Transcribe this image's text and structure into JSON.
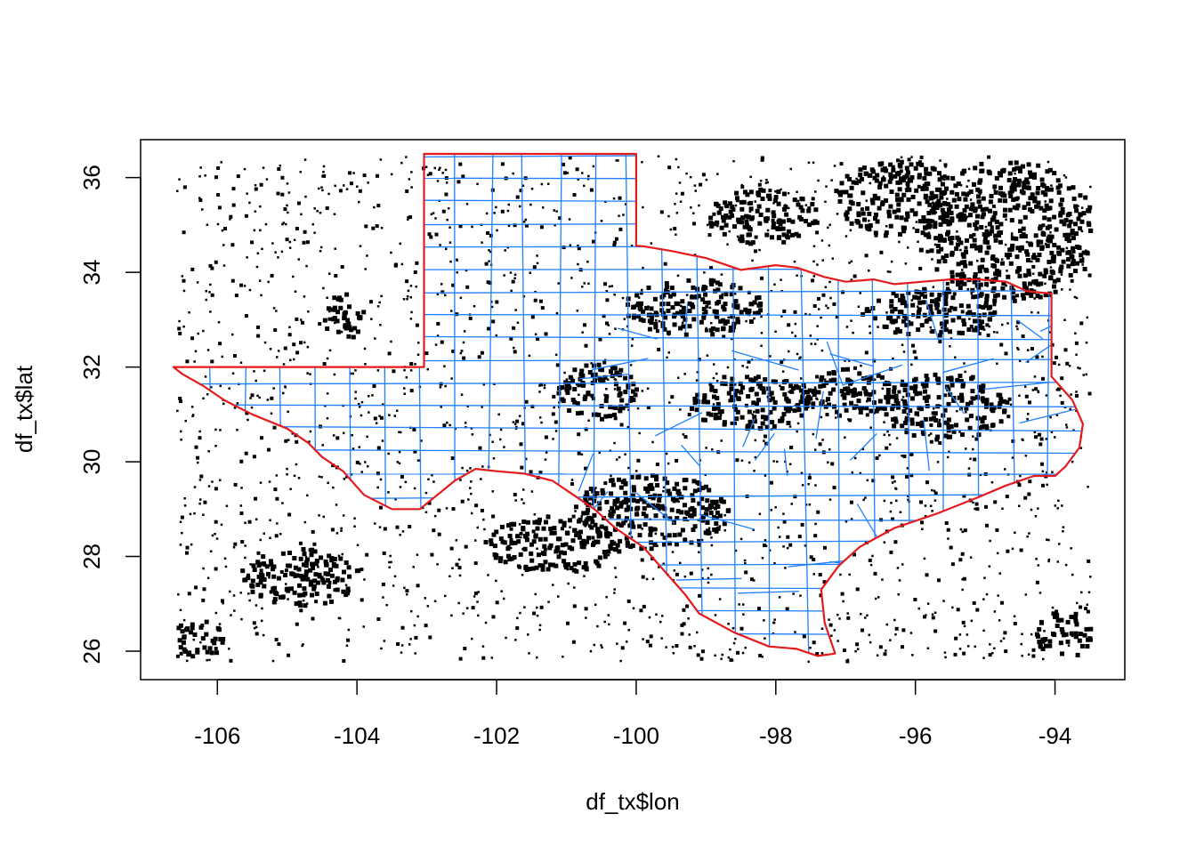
{
  "chart_data": {
    "type": "scatter",
    "title": "",
    "xlabel": "df_tx$lon",
    "ylabel": "df_tx$lat",
    "xlim": [
      -107.1,
      -93.0
    ],
    "ylim": [
      25.4,
      36.8
    ],
    "x_ticks": [
      -106,
      -104,
      -102,
      -100,
      -98,
      -96,
      -94
    ],
    "y_ticks": [
      26,
      28,
      30,
      32,
      34,
      36
    ],
    "x_tick_labels": [
      "-106",
      "-104",
      "-102",
      "-100",
      "-98",
      "-96",
      "-94"
    ],
    "y_tick_labels": [
      "26",
      "28",
      "30",
      "32",
      "34",
      "36"
    ],
    "grid": false,
    "point_color": "#000000",
    "state_outline_color": "#E41A1C",
    "county_line_color": "#1E7FFF",
    "point_extent": {
      "lon": [
        -106.6,
        -93.5
      ],
      "lat": [
        25.8,
        36.5
      ]
    },
    "point_clusters": [
      {
        "lon": -94.7,
        "lat": 34.9,
        "r_lon": 1.3,
        "r_lat": 1.5
      },
      {
        "lon": -95.8,
        "lat": 33.2,
        "r_lon": 1.0,
        "r_lat": 0.5
      },
      {
        "lon": -95.6,
        "lat": 31.2,
        "r_lon": 0.9,
        "r_lat": 0.7
      },
      {
        "lon": -97.0,
        "lat": 31.5,
        "r_lon": 0.7,
        "r_lat": 0.5
      },
      {
        "lon": -99.8,
        "lat": 29.0,
        "r_lon": 1.1,
        "r_lat": 0.8
      },
      {
        "lon": -101.2,
        "lat": 28.3,
        "r_lon": 1.0,
        "r_lat": 0.6
      },
      {
        "lon": -99.2,
        "lat": 33.3,
        "r_lon": 1.0,
        "r_lat": 0.6
      },
      {
        "lon": -98.4,
        "lat": 31.3,
        "r_lon": 0.9,
        "r_lat": 0.6
      },
      {
        "lon": -100.6,
        "lat": 31.5,
        "r_lon": 0.6,
        "r_lat": 0.6
      },
      {
        "lon": -104.8,
        "lat": 27.6,
        "r_lon": 0.9,
        "r_lat": 0.6
      },
      {
        "lon": -106.3,
        "lat": 26.3,
        "r_lon": 0.4,
        "r_lat": 0.4
      },
      {
        "lon": -93.9,
        "lat": 26.4,
        "r_lon": 0.4,
        "r_lat": 0.5
      },
      {
        "lon": -104.2,
        "lat": 33.1,
        "r_lon": 0.3,
        "r_lat": 0.5
      },
      {
        "lon": -96.3,
        "lat": 35.6,
        "r_lon": 0.9,
        "r_lat": 0.8
      },
      {
        "lon": -98.2,
        "lat": 35.2,
        "r_lon": 0.8,
        "r_lat": 0.6
      }
    ],
    "series": [
      {
        "name": "",
        "type": "polyline",
        "role": "state-outline",
        "lon": [
          -106.63,
          -106.5,
          -106.2,
          -105.9,
          -105.5,
          -105.0,
          -104.7,
          -104.5,
          -104.2,
          -103.9,
          -103.5,
          -103.1,
          -102.6,
          -102.3,
          -102.0,
          -101.6,
          -101.2,
          -100.9,
          -100.6,
          -100.3,
          -99.9,
          -99.6,
          -99.3,
          -99.1,
          -98.6,
          -98.1,
          -97.7,
          -97.4,
          -97.15,
          -97.3,
          -97.35,
          -97.1,
          -96.8,
          -96.3,
          -95.7,
          -95.1,
          -94.7,
          -94.3,
          -94.0,
          -93.85,
          -93.65,
          -93.6,
          -93.75,
          -94.05,
          -94.05,
          -94.4,
          -94.7,
          -95.1,
          -95.5,
          -95.9,
          -96.3,
          -96.6,
          -97.0,
          -97.3,
          -97.7,
          -98.0,
          -98.5,
          -99.0,
          -99.5,
          -99.9,
          -100.0,
          -100.0,
          -103.04,
          -103.04,
          -103.06,
          -106.63
        ],
        "lat": [
          32.0,
          31.85,
          31.6,
          31.3,
          31.0,
          30.7,
          30.4,
          30.1,
          29.8,
          29.3,
          29.0,
          29.0,
          29.6,
          29.85,
          29.8,
          29.75,
          29.6,
          29.3,
          29.0,
          28.6,
          28.2,
          27.7,
          27.2,
          26.8,
          26.4,
          26.1,
          26.05,
          25.9,
          25.95,
          26.6,
          27.3,
          27.8,
          28.2,
          28.6,
          28.9,
          29.25,
          29.5,
          29.7,
          29.7,
          29.9,
          30.3,
          30.8,
          31.3,
          31.8,
          33.55,
          33.6,
          33.8,
          33.85,
          33.85,
          33.8,
          33.75,
          33.85,
          33.8,
          33.9,
          34.1,
          34.15,
          34.05,
          34.3,
          34.45,
          34.55,
          34.56,
          36.5,
          36.5,
          32.0,
          32.0,
          32.0
        ]
      }
    ]
  }
}
